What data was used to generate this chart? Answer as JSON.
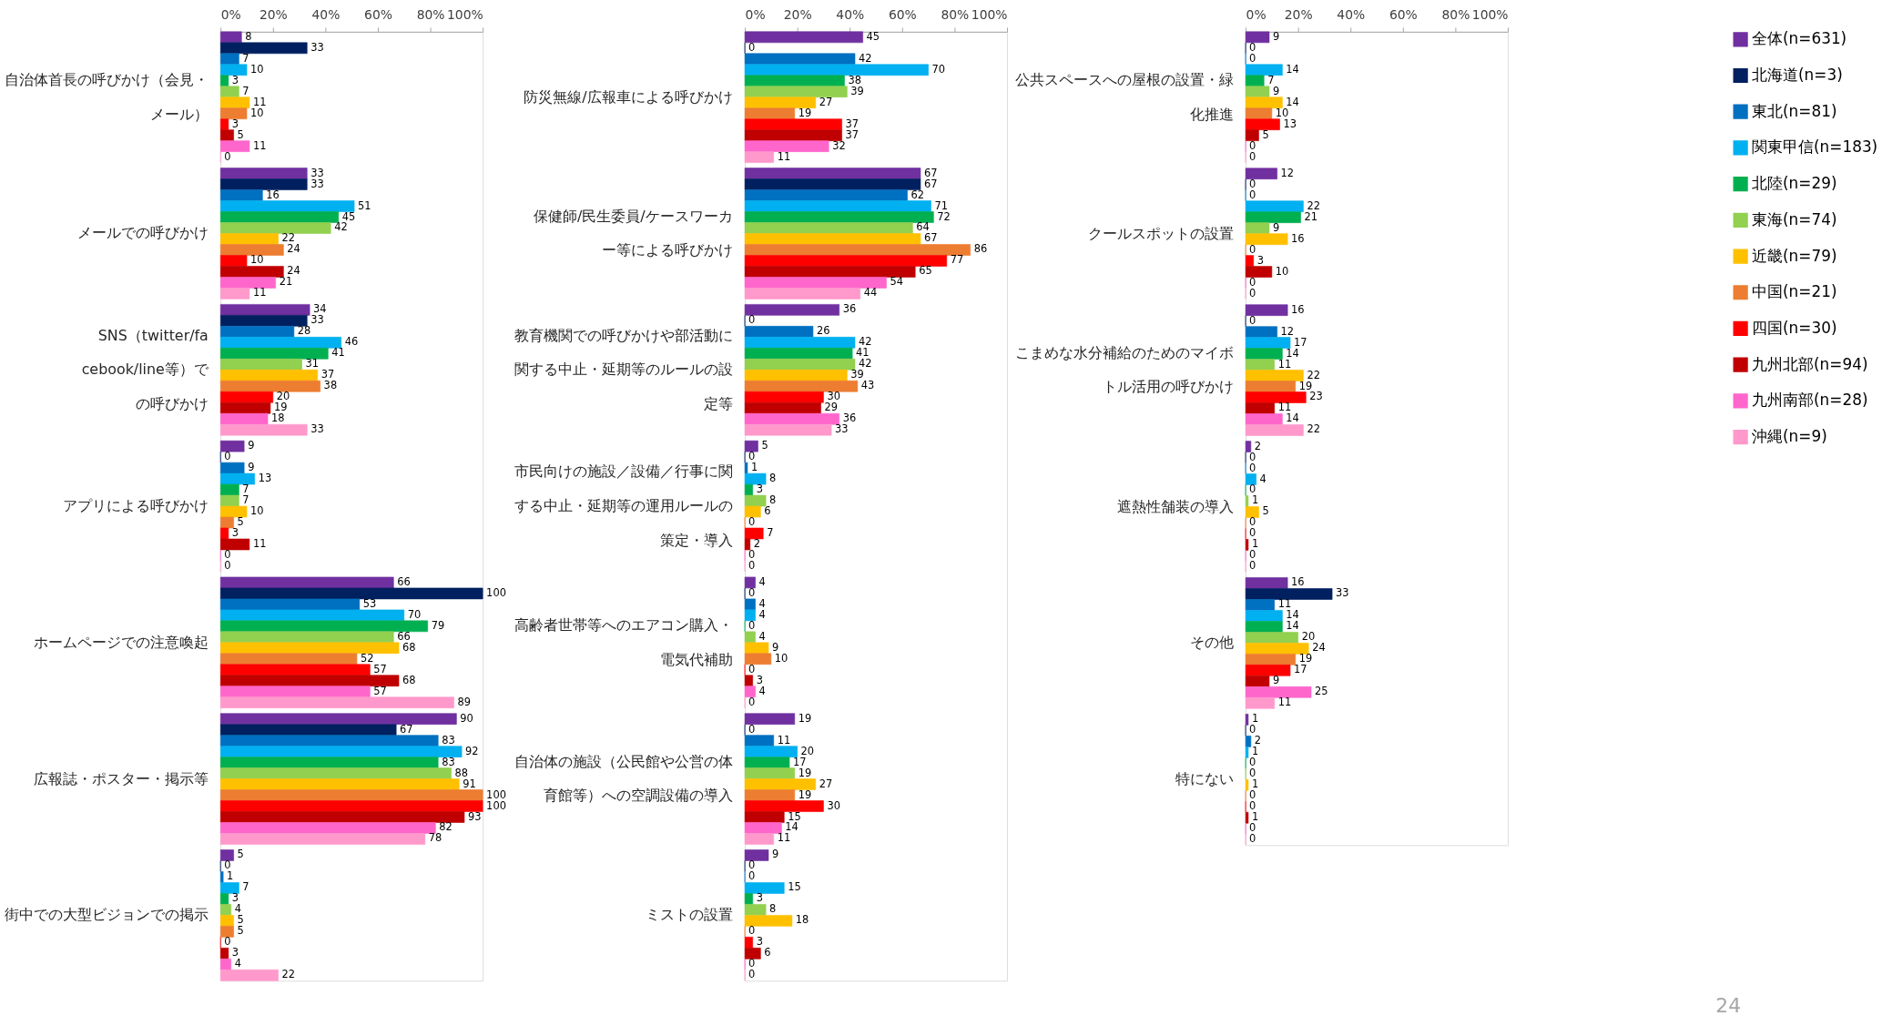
{
  "chart_data": [
    {
      "type": "bar",
      "orientation": "horizontal",
      "data_labels": true,
      "grid": false,
      "legend": "right",
      "categories": [
        "自治体首長の呼びかけ（会見・メール）",
        "メールでの呼びかけ",
        "SNS（twitter/facebook/line等）での呼びかけ",
        "アプリによる呼びかけ",
        "ホームページでの注意喚起",
        "広報誌・ポスター・掲示等",
        "街中での大型ビジョンでの掲示"
      ],
      "xlim": [
        0,
        100
      ],
      "xticks": [
        {
          "value": 0,
          "label": "0%"
        },
        {
          "value": 20,
          "label": "20%"
        },
        {
          "value": 40,
          "label": "40%"
        },
        {
          "value": 60,
          "label": "60%"
        },
        {
          "value": 80,
          "label": "80%"
        },
        {
          "value": 100,
          "label": "100%"
        }
      ],
      "series": [
        {
          "name": "全体(n=631)",
          "color": "#7030a0",
          "values": [
            8,
            33,
            34,
            9,
            66,
            90,
            5
          ]
        },
        {
          "name": "北海道(n=3)",
          "color": "#002060",
          "values": [
            33,
            33,
            33,
            0,
            100,
            67,
            0
          ]
        },
        {
          "name": "東北(n=81)",
          "color": "#0070c0",
          "values": [
            7,
            16,
            28,
            9,
            53,
            83,
            1
          ]
        },
        {
          "name": "関東甲信(n=183)",
          "color": "#00b0f0",
          "values": [
            10,
            51,
            46,
            13,
            70,
            92,
            7
          ]
        },
        {
          "name": "北陸(n=29)",
          "color": "#00b050",
          "values": [
            3,
            45,
            41,
            7,
            79,
            83,
            3
          ]
        },
        {
          "name": "東海(n=74)",
          "color": "#92d050",
          "values": [
            7,
            42,
            31,
            7,
            66,
            88,
            4
          ]
        },
        {
          "name": "近畿(n=79)",
          "color": "#ffc000",
          "values": [
            11,
            22,
            37,
            10,
            68,
            91,
            5
          ]
        },
        {
          "name": "中国(n=21)",
          "color": "#ed7d31",
          "values": [
            10,
            24,
            38,
            5,
            52,
            100,
            5
          ]
        },
        {
          "name": "四国(n=30)",
          "color": "#ff0000",
          "values": [
            3,
            10,
            20,
            3,
            57,
            100,
            0
          ]
        },
        {
          "name": "九州北部(n=94)",
          "color": "#c00000",
          "values": [
            5,
            24,
            19,
            11,
            68,
            93,
            3
          ]
        },
        {
          "name": "九州南部(n=28)",
          "color": "#ff66cc",
          "values": [
            11,
            21,
            18,
            0,
            57,
            82,
            4
          ]
        },
        {
          "name": "沖縄(n=9)",
          "color": "#ff99cc",
          "values": [
            0,
            11,
            33,
            0,
            89,
            78,
            22
          ]
        }
      ]
    },
    {
      "type": "bar",
      "orientation": "horizontal",
      "data_labels": true,
      "grid": false,
      "legend": "right",
      "categories": [
        "防災無線/広報車による呼びかけ",
        "保健師/民生委員/ケースワーカー等による呼びかけ",
        "教育機関での呼びかけや部活動に関する中止・延期等のルールの設定等",
        "市民向けの施設／設備／行事に関する中止・延期等の運用ルールの策定・導入",
        "高齢者世帯等へのエアコン購入・電気代補助",
        "自治体の施設（公民館や公営の体育館等）への空調設備の導入",
        "ミストの設置"
      ],
      "xlim": [
        0,
        100
      ],
      "xticks": [
        {
          "value": 0,
          "label": "0%"
        },
        {
          "value": 20,
          "label": "20%"
        },
        {
          "value": 40,
          "label": "40%"
        },
        {
          "value": 60,
          "label": "60%"
        },
        {
          "value": 80,
          "label": "80%"
        },
        {
          "value": 100,
          "label": "100%"
        }
      ],
      "series": [
        {
          "name": "全体(n=631)",
          "color": "#7030a0",
          "values": [
            45,
            67,
            36,
            5,
            4,
            19,
            9
          ]
        },
        {
          "name": "北海道(n=3)",
          "color": "#002060",
          "values": [
            0,
            67,
            0,
            0,
            0,
            0,
            0
          ]
        },
        {
          "name": "東北(n=81)",
          "color": "#0070c0",
          "values": [
            42,
            62,
            26,
            1,
            4,
            11,
            0
          ]
        },
        {
          "name": "関東甲信(n=183)",
          "color": "#00b0f0",
          "values": [
            70,
            71,
            42,
            8,
            4,
            20,
            15
          ]
        },
        {
          "name": "北陸(n=29)",
          "color": "#00b050",
          "values": [
            38,
            72,
            41,
            3,
            0,
            17,
            3
          ]
        },
        {
          "name": "東海(n=74)",
          "color": "#92d050",
          "values": [
            39,
            64,
            42,
            8,
            4,
            19,
            8
          ]
        },
        {
          "name": "近畿(n=79)",
          "color": "#ffc000",
          "values": [
            27,
            67,
            39,
            6,
            9,
            27,
            18
          ]
        },
        {
          "name": "中国(n=21)",
          "color": "#ed7d31",
          "values": [
            19,
            86,
            43,
            0,
            10,
            19,
            0
          ]
        },
        {
          "name": "四国(n=30)",
          "color": "#ff0000",
          "values": [
            37,
            77,
            30,
            7,
            0,
            30,
            3
          ]
        },
        {
          "name": "九州北部(n=94)",
          "color": "#c00000",
          "values": [
            37,
            65,
            29,
            2,
            3,
            15,
            6
          ]
        },
        {
          "name": "九州南部(n=28)",
          "color": "#ff66cc",
          "values": [
            32,
            54,
            36,
            0,
            4,
            14,
            0
          ]
        },
        {
          "name": "沖縄(n=9)",
          "color": "#ff99cc",
          "values": [
            11,
            44,
            33,
            0,
            0,
            11,
            0
          ]
        }
      ]
    },
    {
      "type": "bar",
      "orientation": "horizontal",
      "data_labels": true,
      "grid": false,
      "legend": "right",
      "categories": [
        "公共スペースへの屋根の設置・緑化推進",
        "クールスポットの設置",
        "こまめな水分補給のためのマイボトル活用の呼びかけ",
        "遮熱性舗装の導入",
        "その他",
        "特にない"
      ],
      "xlim": [
        0,
        100
      ],
      "xticks": [
        {
          "value": 0,
          "label": "0%"
        },
        {
          "value": 20,
          "label": "20%"
        },
        {
          "value": 40,
          "label": "40%"
        },
        {
          "value": 60,
          "label": "60%"
        },
        {
          "value": 80,
          "label": "80%"
        },
        {
          "value": 100,
          "label": "100%"
        }
      ],
      "annotations": [
        "24"
      ],
      "series": [
        {
          "name": "全体(n=631)",
          "color": "#7030a0",
          "values": [
            9,
            12,
            16,
            2,
            16,
            1
          ]
        },
        {
          "name": "北海道(n=3)",
          "color": "#002060",
          "values": [
            0,
            0,
            0,
            0,
            33,
            0
          ]
        },
        {
          "name": "東北(n=81)",
          "color": "#0070c0",
          "values": [
            0,
            0,
            12,
            0,
            11,
            2
          ]
        },
        {
          "name": "関東甲信(n=183)",
          "color": "#00b0f0",
          "values": [
            14,
            22,
            17,
            4,
            14,
            1
          ]
        },
        {
          "name": "北陸(n=29)",
          "color": "#00b050",
          "values": [
            7,
            21,
            14,
            0,
            14,
            0
          ]
        },
        {
          "name": "東海(n=74)",
          "color": "#92d050",
          "values": [
            9,
            9,
            11,
            1,
            20,
            0
          ]
        },
        {
          "name": "近畿(n=79)",
          "color": "#ffc000",
          "values": [
            14,
            16,
            22,
            5,
            24,
            1
          ]
        },
        {
          "name": "中国(n=21)",
          "color": "#ed7d31",
          "values": [
            10,
            0,
            19,
            0,
            19,
            0
          ]
        },
        {
          "name": "四国(n=30)",
          "color": "#ff0000",
          "values": [
            13,
            3,
            23,
            0,
            17,
            0
          ]
        },
        {
          "name": "九州北部(n=94)",
          "color": "#c00000",
          "values": [
            5,
            10,
            11,
            1,
            9,
            1
          ]
        },
        {
          "name": "九州南部(n=28)",
          "color": "#ff66cc",
          "values": [
            0,
            0,
            14,
            0,
            25,
            0
          ]
        },
        {
          "name": "沖縄(n=9)",
          "color": "#ff99cc",
          "values": [
            0,
            0,
            22,
            0,
            11,
            0
          ]
        }
      ]
    }
  ]
}
